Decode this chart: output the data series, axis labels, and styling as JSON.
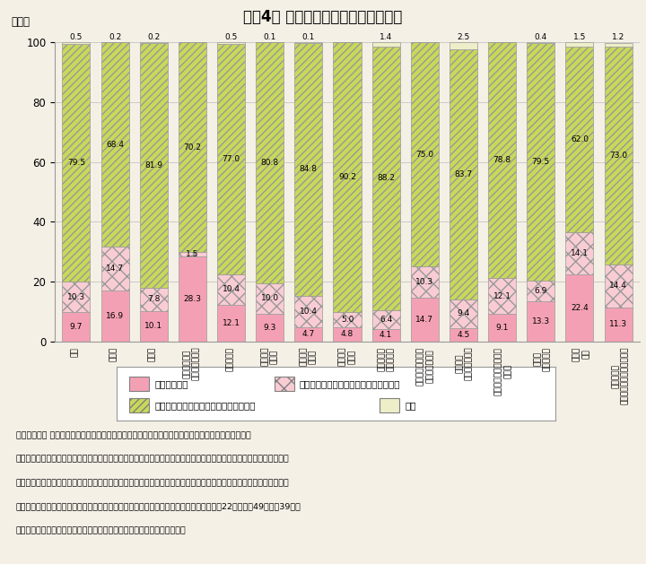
{
  "title": "（围4） 教育訓練休暇制度の導入状況",
  "title_bg": "#5bc4d0",
  "categories": [
    "総数",
    "建設業",
    "製造業",
    "電気・ガス・\n熱供給・水道業",
    "情報通信業",
    "運輸業、\n郵便業",
    "卸売業、\n小売業",
    "金融業、\n保険業",
    "不動産業、\n物品賃貸業",
    "学術研究、専門・\n技術サービス業",
    "宿泊業、\n飲食サービス業",
    "生活関連サービス業、\n娯楽業",
    "教育、\n学習支援業",
    "医療、\n福祉",
    "サービス業\n（他に分類されないもの）"
  ],
  "s1": [
    9.7,
    16.9,
    10.1,
    28.3,
    12.1,
    9.3,
    4.7,
    4.8,
    4.1,
    14.7,
    4.5,
    9.1,
    13.3,
    22.4,
    11.3
  ],
  "s2": [
    10.3,
    14.7,
    7.8,
    1.5,
    10.4,
    10.0,
    10.4,
    5.0,
    6.4,
    10.3,
    9.4,
    12.1,
    6.9,
    14.1,
    14.4
  ],
  "s3": [
    79.5,
    68.4,
    81.9,
    70.2,
    77.0,
    80.8,
    84.8,
    90.2,
    88.2,
    75.0,
    83.7,
    78.8,
    79.5,
    62.0,
    73.0
  ],
  "s4": [
    0.5,
    0.2,
    0.2,
    0.0,
    0.5,
    0.1,
    0.1,
    0.0,
    1.4,
    0.0,
    2.5,
    0.0,
    0.4,
    1.5,
    1.2
  ],
  "s4_show": [
    0.5,
    0.2,
    0.2,
    null,
    0.5,
    0.1,
    0.1,
    null,
    1.4,
    null,
    2.5,
    null,
    0.4,
    1.5,
    1.2
  ],
  "color_s1": "#f4a0b4",
  "color_s2": "#f9ccd4",
  "color_s3": "#c8d95a",
  "color_s4": "#eeeec8",
  "legend": [
    "導入している",
    "導入していないが、導入を予定している",
    "導入していないし、導入する予定はない",
    "不明"
  ],
  "note1": "（備考）１． 厄生労働省「能力開発基本調査（企業調査）」（令和３（２０２１）年度）より作成。",
  "note2": "　　　　２．「教育訓練休暇」とは、職業人としての資質の向上その他職業に関する教育訓練を受ける労働者に対して",
  "note3": "　　　　　　与えられる休暇のことをいう。有給であるか無給であるかは問わない。また、社内での名称が異なる場合",
  "note4": "　　　　　　でも同様の目的で使用できる場合も含む（有給の場合は、労働基準法（昭和22年法律笩49号）笩39条の",
  "note5": "　　　　　　規定による年次有給休暇として与えられるものは除く。）。",
  "ylabel": "（％）",
  "background_color": "#f5f0e6"
}
